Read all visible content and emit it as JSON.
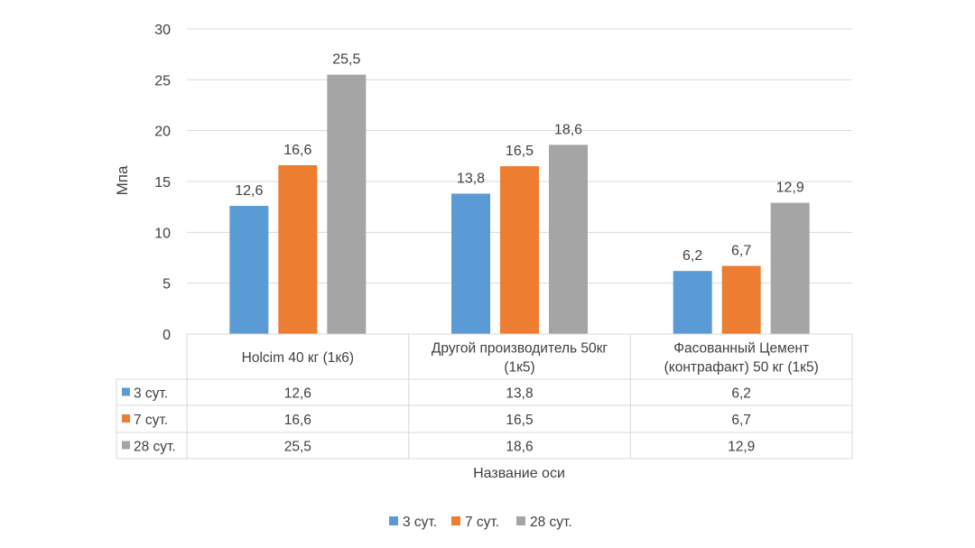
{
  "chart_data": {
    "type": "bar",
    "title": "",
    "xlabel": "Название оси",
    "ylabel": "Мпа",
    "ylim": [
      0,
      30
    ],
    "yticks": [
      "0",
      "5",
      "10",
      "15",
      "20",
      "25",
      "30"
    ],
    "grid": true,
    "legend_placement": "bottom",
    "categories": [
      [
        "Holcim 40 кг (1к6)"
      ],
      [
        "Другой производитель 50кг",
        "(1к5)"
      ],
      [
        "Фасованный Цемент",
        "(контрафакт) 50 кг (1к5)"
      ]
    ],
    "series": [
      {
        "name": "3 сут.",
        "color": "#5B9BD5",
        "values": [
          12.6,
          13.8,
          6.2
        ],
        "labels": [
          "12,6",
          "13,8",
          "6,2"
        ]
      },
      {
        "name": "7 сут.",
        "color": "#ED7D31",
        "values": [
          16.6,
          16.5,
          6.7
        ],
        "labels": [
          "16,6",
          "16,5",
          "6,7"
        ]
      },
      {
        "name": "28 сут.",
        "color": "#A5A5A5",
        "values": [
          25.5,
          18.6,
          12.9
        ],
        "labels": [
          "25,5",
          "18,6",
          "12,9"
        ]
      }
    ]
  }
}
